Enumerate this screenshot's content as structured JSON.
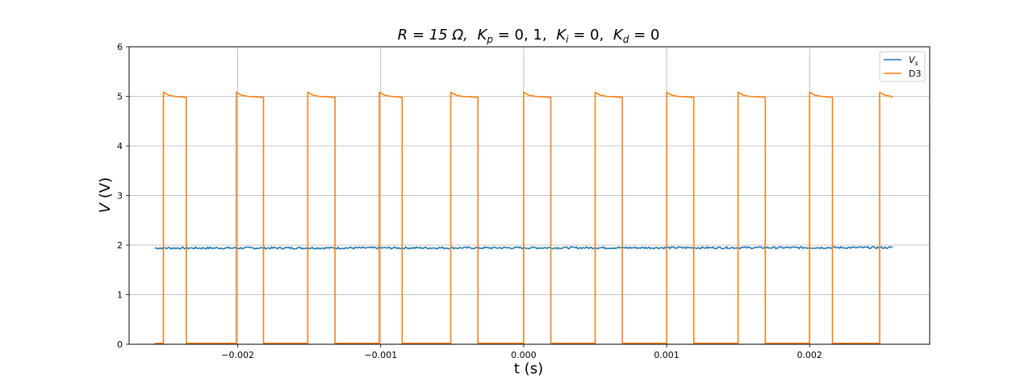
{
  "chart_data": {
    "type": "line",
    "title": "R = 15 Ω,  K_p = 0, 1,  K_i = 0,  K_d = 0",
    "title_parts": {
      "r": "R = 15 Ω,",
      "kp": "K",
      "kp_sub": "p",
      "kp_val": " = 0, 1,",
      "ki": "K",
      "ki_sub": "i",
      "ki_val": " = 0,",
      "kd": "K",
      "kd_sub": "d",
      "kd_val": " = 0"
    },
    "xlabel": "t (s)",
    "ylabel": "V (V)",
    "ylabel_parts": {
      "v": "V",
      "unit": " (V)"
    },
    "xlim": [
      -0.00276,
      0.00284
    ],
    "ylim": [
      0,
      6
    ],
    "xticks": [
      -0.002,
      -0.001,
      0.0,
      0.001,
      0.002
    ],
    "xtick_labels": [
      "−0.002",
      "−0.001",
      "0.000",
      "0.001",
      "0.002"
    ],
    "yticks": [
      0,
      1,
      2,
      3,
      4,
      5,
      6
    ],
    "ytick_labels": [
      "0",
      "1",
      "2",
      "3",
      "4",
      "5",
      "6"
    ],
    "grid": true,
    "legend_position": "top-right",
    "series": [
      {
        "name": "V_s",
        "legend_main": "V",
        "legend_sub": "s",
        "color": "#1f77b4",
        "x": [
          -0.00258,
          0.00258
        ],
        "y": [
          1.94,
          1.95
        ],
        "noise_amplitude": 0.02
      },
      {
        "name": "D3",
        "legend_main": "D3",
        "legend_sub": "",
        "color": "#ff7f0e",
        "t_start": -0.00258,
        "t_end": 0.00258,
        "period": 0.0005,
        "rise_times": [
          -0.00252,
          -0.00201,
          -0.00151,
          -0.00101,
          -0.00051,
          0.0,
          0.0005,
          0.001,
          0.0015,
          0.002,
          0.00249
        ],
        "fall_times": [
          -0.00236,
          -0.00182,
          -0.00132,
          -0.00085,
          -0.00032,
          0.00019,
          0.00069,
          0.00119,
          0.00169,
          0.00216
        ],
        "high_value_start": 5.08,
        "high_value_end": 4.98,
        "low_value": 0.02
      }
    ]
  }
}
